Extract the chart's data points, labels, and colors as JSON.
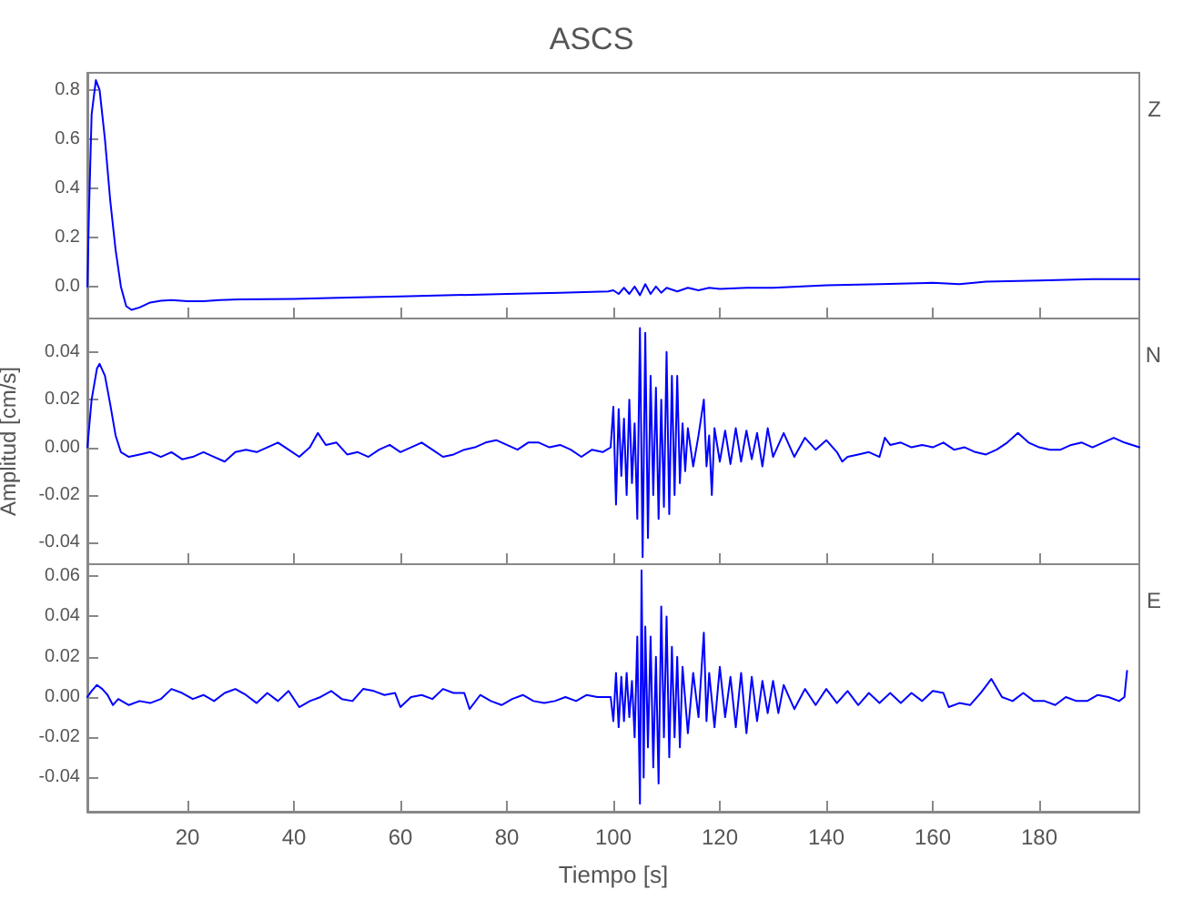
{
  "chart_data": [
    {
      "type": "line",
      "title": "ASCS",
      "xlim": [
        1.2,
        198.8
      ],
      "xticks": [
        20,
        40,
        60,
        80,
        100,
        120,
        140,
        160,
        180
      ],
      "ylim": [
        -0.13,
        0.87
      ],
      "yticks": [
        {
          "value": 0,
          "label": "0.0"
        },
        {
          "value": 0.2,
          "label": "0.2"
        },
        {
          "value": 0.4,
          "label": "0.4"
        },
        {
          "value": 0.6,
          "label": "0.6"
        },
        {
          "value": 0.8,
          "label": "0.8"
        }
      ],
      "tick_labels": "y",
      "series": [
        {
          "name": "Z",
          "color": "#0000ff",
          "x": [
            1.2,
            1.5,
            2,
            2.8,
            3.5,
            4.5,
            5.5,
            6.5,
            7.5,
            8.5,
            9.5,
            11,
            13,
            15,
            17,
            20,
            23,
            26,
            30,
            40,
            50,
            60,
            70,
            80,
            90,
            99,
            100,
            101,
            102,
            103,
            104,
            105,
            106,
            107,
            108,
            109,
            110,
            112,
            114,
            116,
            118,
            120,
            125,
            130,
            140,
            150,
            160,
            165,
            170,
            180,
            190,
            198.8
          ],
          "values": [
            0,
            0.3,
            0.7,
            0.84,
            0.8,
            0.6,
            0.35,
            0.15,
            0.0,
            -0.08,
            -0.095,
            -0.085,
            -0.065,
            -0.058,
            -0.055,
            -0.06,
            -0.06,
            -0.055,
            -0.052,
            -0.05,
            -0.045,
            -0.04,
            -0.035,
            -0.03,
            -0.025,
            -0.02,
            -0.015,
            -0.03,
            -0.005,
            -0.03,
            0.0,
            -0.035,
            0.01,
            -0.03,
            0.0,
            -0.025,
            -0.005,
            -0.02,
            -0.005,
            -0.015,
            -0.005,
            -0.01,
            -0.005,
            -0.005,
            0.005,
            0.01,
            0.015,
            0.01,
            0.02,
            0.025,
            0.03,
            0.03
          ]
        }
      ]
    },
    {
      "type": "line",
      "ylabel": "Amplitud [cm/s]",
      "xlim": [
        1.2,
        198.8
      ],
      "xticks": [
        20,
        40,
        60,
        80,
        100,
        120,
        140,
        160,
        180
      ],
      "ylim": [
        -0.049,
        0.054
      ],
      "yticks": [
        {
          "value": -0.04,
          "label": "-0.04"
        },
        {
          "value": -0.02,
          "label": "-0.02"
        },
        {
          "value": 0,
          "label": "0.00"
        },
        {
          "value": 0.02,
          "label": "0.02"
        },
        {
          "value": 0.04,
          "label": "0.04"
        }
      ],
      "tick_labels": "y",
      "series": [
        {
          "name": "N",
          "color": "#0000ff",
          "x": [
            1.2,
            2,
            3,
            3.5,
            4.5,
            5.5,
            6.5,
            7.5,
            9,
            11,
            13,
            15,
            17,
            19,
            21,
            23,
            25,
            27,
            29,
            31,
            33,
            35,
            37,
            39,
            41,
            43,
            44.5,
            46,
            48,
            50,
            52,
            54,
            56,
            58,
            60,
            62,
            64,
            66,
            68,
            70,
            72,
            74,
            76,
            78,
            80,
            82,
            84,
            86,
            88,
            90,
            92,
            94,
            96,
            98,
            99.5,
            100,
            100.5,
            101,
            101.5,
            102,
            102.5,
            103,
            103.5,
            104,
            104.5,
            105,
            105.5,
            106,
            106.5,
            107,
            107.5,
            108,
            108.5,
            109,
            109.5,
            110,
            110.5,
            111,
            111.5,
            112,
            112.5,
            113,
            113.5,
            114,
            115,
            116,
            117,
            117.5,
            118,
            118.5,
            119,
            120,
            121,
            122,
            123,
            124,
            125,
            126,
            127,
            128,
            129,
            130,
            132,
            134,
            136,
            138,
            140,
            142,
            143,
            144,
            146,
            148,
            150,
            151,
            152,
            154,
            156,
            158,
            160,
            162,
            164,
            166,
            168,
            170,
            172,
            174,
            176,
            178,
            180,
            182,
            184,
            186,
            188,
            190,
            192,
            194,
            196,
            198.8
          ],
          "values": [
            0,
            0.02,
            0.033,
            0.035,
            0.03,
            0.018,
            0.005,
            -0.002,
            -0.004,
            -0.003,
            -0.002,
            -0.004,
            -0.002,
            -0.005,
            -0.004,
            -0.002,
            -0.004,
            -0.006,
            -0.002,
            -0.001,
            -0.002,
            0.0,
            0.002,
            -0.001,
            -0.004,
            0.0,
            0.006,
            0.001,
            0.002,
            -0.003,
            -0.002,
            -0.004,
            -0.001,
            0.001,
            -0.002,
            0.0,
            0.002,
            -0.001,
            -0.004,
            -0.003,
            -0.001,
            0.0,
            0.002,
            0.003,
            0.001,
            -0.001,
            0.002,
            0.002,
            0.0,
            0.001,
            -0.001,
            -0.004,
            -0.001,
            -0.002,
            0.0,
            0.017,
            -0.024,
            0.016,
            -0.012,
            0.012,
            -0.02,
            0.02,
            -0.015,
            0.01,
            -0.03,
            0.05,
            -0.046,
            0.048,
            -0.038,
            0.03,
            -0.02,
            0.025,
            -0.03,
            0.02,
            -0.025,
            0.04,
            -0.028,
            0.03,
            -0.02,
            0.03,
            -0.015,
            0.01,
            -0.01,
            0.008,
            -0.008,
            0.005,
            0.02,
            -0.008,
            0.005,
            -0.02,
            0.008,
            -0.006,
            0.007,
            -0.007,
            0.008,
            -0.006,
            0.007,
            -0.005,
            0.006,
            -0.008,
            0.008,
            -0.004,
            0.006,
            -0.004,
            0.004,
            -0.001,
            0.003,
            -0.002,
            -0.006,
            -0.004,
            -0.003,
            -0.002,
            -0.004,
            0.004,
            0.001,
            0.002,
            0.0,
            0.001,
            0.0,
            0.002,
            -0.001,
            0.0,
            -0.002,
            -0.003,
            -0.001,
            0.002,
            0.006,
            0.002,
            0.0,
            -0.001,
            -0.001,
            0.001,
            0.002,
            0.0,
            0.002,
            0.004,
            0.002,
            0.0
          ]
        }
      ]
    },
    {
      "type": "line",
      "xlabel": "Tiempo [s]",
      "xlim": [
        1.2,
        198.8
      ],
      "xticks": [
        20,
        40,
        60,
        80,
        100,
        120,
        140,
        160,
        180
      ],
      "ylim": [
        -0.057,
        0.066
      ],
      "yticks": [
        {
          "value": -0.04,
          "label": "-0.04"
        },
        {
          "value": -0.02,
          "label": "-0.02"
        },
        {
          "value": 0,
          "label": "0.00"
        },
        {
          "value": 0.02,
          "label": "0.02"
        },
        {
          "value": 0.04,
          "label": "0.04"
        },
        {
          "value": 0.06,
          "label": "0.06"
        }
      ],
      "series": [
        {
          "name": "E",
          "color": "#0000ff",
          "x": [
            1.2,
            2,
            3,
            4,
            5,
            6,
            7,
            9,
            11,
            13,
            15,
            17,
            19,
            21,
            23,
            25,
            27,
            29,
            31,
            33,
            35,
            37,
            39,
            41,
            43,
            45,
            47,
            49,
            51,
            53,
            55,
            57,
            59,
            60,
            62,
            64,
            66,
            68,
            70,
            72,
            73,
            75,
            77,
            79,
            81,
            83,
            85,
            87,
            89,
            91,
            93,
            95,
            97,
            99.5,
            100,
            100.5,
            101,
            101.5,
            102,
            102.5,
            103,
            103.5,
            104,
            104.5,
            105,
            105.3,
            105.7,
            106,
            106.5,
            107,
            107.5,
            108,
            108.5,
            109,
            109.5,
            110,
            110.5,
            111,
            111.5,
            112,
            112.5,
            113,
            114,
            115,
            116,
            117,
            117.5,
            118,
            119,
            120,
            121,
            122,
            123,
            124,
            125,
            126,
            127,
            128,
            129,
            130,
            131,
            132,
            134,
            136,
            138,
            140,
            142,
            144,
            146,
            148,
            150,
            152,
            154,
            156,
            158,
            160,
            162,
            163,
            165,
            167,
            169,
            171,
            173,
            175,
            177,
            179,
            181,
            183,
            185,
            187,
            189,
            191,
            193,
            195,
            196,
            196.5
          ],
          "values": [
            0,
            0.003,
            0.006,
            0.004,
            0.001,
            -0.004,
            -0.001,
            -0.004,
            -0.002,
            -0.003,
            -0.001,
            0.004,
            0.002,
            -0.001,
            0.001,
            -0.002,
            0.002,
            0.004,
            0.001,
            -0.003,
            0.002,
            -0.002,
            0.003,
            -0.005,
            -0.002,
            0.0,
            0.003,
            -0.001,
            -0.002,
            0.004,
            0.003,
            0.001,
            0.002,
            -0.005,
            0.0,
            0.001,
            -0.001,
            0.004,
            0.002,
            0.002,
            -0.006,
            0.001,
            -0.002,
            -0.004,
            -0.001,
            0.001,
            -0.002,
            -0.003,
            -0.002,
            0.0,
            -0.002,
            0.001,
            0.0,
            0.0,
            -0.012,
            0.012,
            -0.015,
            0.01,
            -0.012,
            0.012,
            -0.01,
            0.008,
            -0.02,
            0.03,
            -0.053,
            0.063,
            -0.04,
            0.035,
            -0.025,
            0.03,
            -0.035,
            0.02,
            -0.043,
            0.045,
            -0.02,
            0.04,
            -0.03,
            0.025,
            -0.02,
            0.02,
            -0.025,
            0.015,
            -0.018,
            0.012,
            -0.01,
            0.032,
            -0.012,
            0.012,
            -0.015,
            0.015,
            -0.01,
            0.01,
            -0.015,
            0.012,
            -0.018,
            0.01,
            -0.012,
            0.008,
            -0.008,
            0.008,
            -0.008,
            0.006,
            -0.006,
            0.004,
            -0.004,
            0.004,
            -0.003,
            0.003,
            -0.004,
            0.002,
            -0.003,
            0.002,
            -0.003,
            0.002,
            -0.002,
            0.003,
            0.002,
            -0.005,
            -0.003,
            -0.004,
            0.002,
            0.009,
            0.0,
            -0.002,
            0.002,
            -0.002,
            -0.002,
            -0.004,
            0.0,
            -0.002,
            -0.002,
            0.001,
            0.0,
            -0.002,
            0.0,
            0.013
          ]
        }
      ]
    }
  ]
}
